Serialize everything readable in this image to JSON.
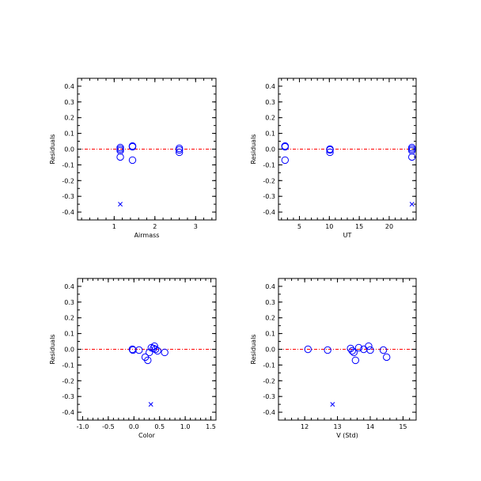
{
  "chart_data": [
    {
      "type": "scatter",
      "xlabel": "Airmass",
      "ylabel": "Residuals",
      "xlim": [
        0.1,
        3.5
      ],
      "ylim": [
        -0.45,
        0.45
      ],
      "xticks": [
        1,
        2,
        3
      ],
      "yticks": [
        -0.4,
        -0.3,
        -0.2,
        -0.1,
        0.0,
        0.1,
        0.2,
        0.3,
        0.4
      ],
      "ytick_labels": [
        "-0.4",
        "-0.3",
        "-0.2",
        "-0.1",
        "0.0",
        "0.1",
        "0.2",
        "0.3",
        "0.4"
      ],
      "reference_line": 0.0,
      "series": [
        {
          "marker": "circle",
          "color": "#0000ff",
          "points": [
            [
              1.15,
              0.01
            ],
            [
              1.15,
              0.0
            ],
            [
              1.15,
              -0.01
            ],
            [
              1.15,
              -0.05
            ],
            [
              1.45,
              0.02
            ],
            [
              1.45,
              0.015
            ],
            [
              1.45,
              -0.07
            ],
            [
              2.6,
              0.005
            ],
            [
              2.6,
              -0.005
            ],
            [
              2.6,
              -0.02
            ]
          ]
        },
        {
          "marker": "x",
          "color": "#0000ff",
          "points": [
            [
              1.15,
              -0.35
            ]
          ]
        }
      ]
    },
    {
      "type": "scatter",
      "xlabel": "UT",
      "ylabel": "Residuals",
      "xlim": [
        1.5,
        24.5
      ],
      "ylim": [
        -0.45,
        0.45
      ],
      "xticks": [
        5,
        10,
        15,
        20
      ],
      "yticks": [
        -0.4,
        -0.3,
        -0.2,
        -0.1,
        0.0,
        0.1,
        0.2,
        0.3,
        0.4
      ],
      "ytick_labels": [
        "-0.4",
        "-0.3",
        "-0.2",
        "-0.1",
        "0.0",
        "0.1",
        "0.2",
        "0.3",
        "0.4"
      ],
      "reference_line": 0.0,
      "series": [
        {
          "marker": "circle",
          "color": "#0000ff",
          "points": [
            [
              2.6,
              0.02
            ],
            [
              2.6,
              0.015
            ],
            [
              2.6,
              -0.07
            ],
            [
              10.1,
              0.0
            ],
            [
              10.1,
              -0.005
            ],
            [
              10.1,
              -0.02
            ],
            [
              23.8,
              0.01
            ],
            [
              23.8,
              0.0
            ],
            [
              23.8,
              -0.01
            ],
            [
              23.8,
              -0.05
            ]
          ]
        },
        {
          "marker": "x",
          "color": "#0000ff",
          "points": [
            [
              23.8,
              -0.35
            ]
          ]
        }
      ]
    },
    {
      "type": "scatter",
      "xlabel": "Color",
      "ylabel": "Residuals",
      "xlim": [
        -1.1,
        1.6
      ],
      "ylim": [
        -0.45,
        0.45
      ],
      "xticks": [
        -1.0,
        -0.5,
        0.0,
        0.5,
        1.0,
        1.5
      ],
      "xtick_labels": [
        "-1.0",
        "-0.5",
        "0.0",
        "0.5",
        "1.0",
        "1.5"
      ],
      "yticks": [
        -0.4,
        -0.3,
        -0.2,
        -0.1,
        0.0,
        0.1,
        0.2,
        0.3,
        0.4
      ],
      "ytick_labels": [
        "-0.4",
        "-0.3",
        "-0.2",
        "-0.1",
        "0.0",
        "0.1",
        "0.2",
        "0.3",
        "0.4"
      ],
      "reference_line": 0.0,
      "series": [
        {
          "marker": "circle",
          "color": "#0000ff",
          "points": [
            [
              -0.03,
              0.0
            ],
            [
              -0.02,
              -0.005
            ],
            [
              0.1,
              -0.005
            ],
            [
              0.22,
              -0.05
            ],
            [
              0.27,
              -0.07
            ],
            [
              0.3,
              -0.02
            ],
            [
              0.34,
              0.01
            ],
            [
              0.38,
              0.005
            ],
            [
              0.4,
              0.02
            ],
            [
              0.42,
              0.0
            ],
            [
              0.46,
              -0.01
            ],
            [
              0.6,
              -0.02
            ]
          ]
        },
        {
          "marker": "x",
          "color": "#0000ff",
          "points": [
            [
              0.33,
              -0.35
            ]
          ]
        }
      ]
    },
    {
      "type": "scatter",
      "xlabel": "V (Std)",
      "ylabel": "Residuals",
      "xlim": [
        11.2,
        15.4
      ],
      "ylim": [
        -0.45,
        0.45
      ],
      "xticks": [
        12,
        13,
        14,
        15
      ],
      "yticks": [
        -0.4,
        -0.3,
        -0.2,
        -0.1,
        0.0,
        0.1,
        0.2,
        0.3,
        0.4
      ],
      "ytick_labels": [
        "-0.4",
        "-0.3",
        "-0.2",
        "-0.1",
        "0.0",
        "0.1",
        "0.2",
        "0.3",
        "0.4"
      ],
      "reference_line": 0.0,
      "series": [
        {
          "marker": "circle",
          "color": "#0000ff",
          "points": [
            [
              12.1,
              0.0
            ],
            [
              12.7,
              -0.005
            ],
            [
              13.4,
              0.005
            ],
            [
              13.45,
              -0.01
            ],
            [
              13.5,
              -0.02
            ],
            [
              13.55,
              -0.07
            ],
            [
              13.65,
              0.01
            ],
            [
              13.8,
              0.0
            ],
            [
              13.95,
              0.02
            ],
            [
              14.0,
              -0.005
            ],
            [
              14.4,
              -0.005
            ],
            [
              14.5,
              -0.05
            ]
          ]
        },
        {
          "marker": "x",
          "color": "#0000ff",
          "points": [
            [
              12.85,
              -0.35
            ]
          ]
        }
      ]
    }
  ],
  "colors": {
    "marker": "#0000ff",
    "reference_line": "#ff0000",
    "axes": "#000000"
  }
}
